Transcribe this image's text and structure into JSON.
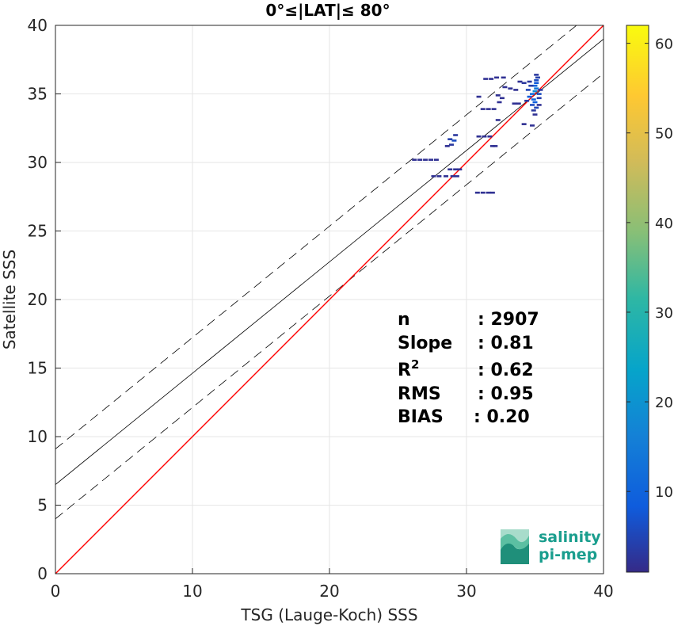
{
  "chart_data": {
    "type": "scatter",
    "title": "0°≤|LAT|≤ 80°",
    "xlabel": "TSG (Lauge-Koch) SSS",
    "ylabel": "Satellite SSS",
    "xlim": [
      0,
      40
    ],
    "ylim": [
      0,
      40
    ],
    "xticks": [
      "0",
      "10",
      "20",
      "30",
      "40"
    ],
    "yticks": [
      "0",
      "5",
      "10",
      "15",
      "20",
      "25",
      "30",
      "35",
      "40"
    ],
    "grid": true,
    "colorbar": {
      "min": 1,
      "max": 62,
      "ticks": [
        "10",
        "20",
        "30",
        "40",
        "50",
        "60"
      ],
      "colormap": "parula"
    },
    "lines": {
      "one_to_one": {
        "x": [
          0,
          40
        ],
        "y": [
          0,
          40
        ],
        "color": "#ff0000"
      },
      "fit": {
        "x": [
          0,
          40
        ],
        "y": [
          6.5,
          39.0
        ],
        "color": "#000000"
      },
      "fit_upper": {
        "x": [
          0,
          40
        ],
        "y": [
          9.1,
          41.6
        ],
        "dash": true
      },
      "fit_lower": {
        "x": [
          0,
          40
        ],
        "y": [
          4.0,
          36.5
        ],
        "dash": true
      }
    },
    "points": [
      {
        "x": 26.2,
        "y": 30.2,
        "c": 2
      },
      {
        "x": 26.6,
        "y": 30.2,
        "c": 2
      },
      {
        "x": 27.0,
        "y": 30.2,
        "c": 2
      },
      {
        "x": 27.4,
        "y": 30.2,
        "c": 2
      },
      {
        "x": 27.8,
        "y": 30.2,
        "c": 2
      },
      {
        "x": 27.6,
        "y": 29.0,
        "c": 2
      },
      {
        "x": 28.0,
        "y": 29.0,
        "c": 2
      },
      {
        "x": 28.5,
        "y": 29.0,
        "c": 2
      },
      {
        "x": 29.0,
        "y": 29.0,
        "c": 2
      },
      {
        "x": 29.3,
        "y": 29.0,
        "c": 2
      },
      {
        "x": 28.8,
        "y": 29.5,
        "c": 2
      },
      {
        "x": 29.2,
        "y": 29.5,
        "c": 2
      },
      {
        "x": 29.5,
        "y": 29.5,
        "c": 2
      },
      {
        "x": 28.8,
        "y": 31.7,
        "c": 4
      },
      {
        "x": 29.1,
        "y": 31.6,
        "c": 6
      },
      {
        "x": 28.9,
        "y": 31.3,
        "c": 3
      },
      {
        "x": 29.2,
        "y": 32.0,
        "c": 3
      },
      {
        "x": 28.6,
        "y": 31.2,
        "c": 2
      },
      {
        "x": 30.8,
        "y": 27.8,
        "c": 2
      },
      {
        "x": 31.2,
        "y": 27.8,
        "c": 2
      },
      {
        "x": 31.6,
        "y": 27.8,
        "c": 2
      },
      {
        "x": 31.9,
        "y": 27.8,
        "c": 2
      },
      {
        "x": 30.9,
        "y": 31.9,
        "c": 2
      },
      {
        "x": 31.3,
        "y": 31.9,
        "c": 2
      },
      {
        "x": 31.7,
        "y": 31.9,
        "c": 2
      },
      {
        "x": 31.9,
        "y": 31.2,
        "c": 2
      },
      {
        "x": 32.1,
        "y": 31.2,
        "c": 2
      },
      {
        "x": 31.2,
        "y": 33.9,
        "c": 2
      },
      {
        "x": 31.6,
        "y": 33.9,
        "c": 2
      },
      {
        "x": 32.0,
        "y": 33.9,
        "c": 2
      },
      {
        "x": 31.4,
        "y": 36.1,
        "c": 2
      },
      {
        "x": 31.8,
        "y": 36.1,
        "c": 2
      },
      {
        "x": 32.2,
        "y": 36.2,
        "c": 2
      },
      {
        "x": 32.7,
        "y": 36.2,
        "c": 2
      },
      {
        "x": 30.9,
        "y": 34.8,
        "c": 2
      },
      {
        "x": 32.3,
        "y": 34.9,
        "c": 2
      },
      {
        "x": 32.6,
        "y": 34.7,
        "c": 2
      },
      {
        "x": 32.4,
        "y": 34.4,
        "c": 2
      },
      {
        "x": 32.8,
        "y": 35.5,
        "c": 2
      },
      {
        "x": 33.2,
        "y": 35.4,
        "c": 2
      },
      {
        "x": 33.6,
        "y": 35.3,
        "c": 2
      },
      {
        "x": 33.5,
        "y": 34.3,
        "c": 2
      },
      {
        "x": 33.8,
        "y": 34.3,
        "c": 2
      },
      {
        "x": 33.9,
        "y": 35.9,
        "c": 2
      },
      {
        "x": 34.2,
        "y": 35.8,
        "c": 3
      },
      {
        "x": 32.3,
        "y": 33.1,
        "c": 2
      },
      {
        "x": 34.2,
        "y": 32.8,
        "c": 2
      },
      {
        "x": 34.6,
        "y": 34.8,
        "c": 8
      },
      {
        "x": 34.8,
        "y": 35.0,
        "c": 12
      },
      {
        "x": 35.0,
        "y": 35.2,
        "c": 18
      },
      {
        "x": 35.1,
        "y": 35.4,
        "c": 14
      },
      {
        "x": 35.0,
        "y": 35.6,
        "c": 10
      },
      {
        "x": 35.1,
        "y": 35.8,
        "c": 8
      },
      {
        "x": 35.1,
        "y": 36.0,
        "c": 6
      },
      {
        "x": 35.2,
        "y": 36.2,
        "c": 4
      },
      {
        "x": 35.1,
        "y": 36.4,
        "c": 3
      },
      {
        "x": 34.9,
        "y": 34.6,
        "c": 10
      },
      {
        "x": 35.0,
        "y": 34.4,
        "c": 9
      },
      {
        "x": 34.8,
        "y": 34.2,
        "c": 6
      },
      {
        "x": 35.1,
        "y": 34.0,
        "c": 5
      },
      {
        "x": 34.9,
        "y": 33.8,
        "c": 3
      },
      {
        "x": 35.0,
        "y": 33.5,
        "c": 2
      },
      {
        "x": 34.8,
        "y": 32.7,
        "c": 2
      },
      {
        "x": 34.5,
        "y": 35.3,
        "c": 5
      },
      {
        "x": 34.7,
        "y": 35.6,
        "c": 4
      },
      {
        "x": 35.3,
        "y": 35.0,
        "c": 6
      },
      {
        "x": 35.3,
        "y": 34.7,
        "c": 4
      },
      {
        "x": 34.4,
        "y": 34.5,
        "c": 3
      },
      {
        "x": 35.4,
        "y": 35.3,
        "c": 3
      },
      {
        "x": 34.6,
        "y": 35.9,
        "c": 3
      },
      {
        "x": 35.3,
        "y": 34.2,
        "c": 2
      }
    ],
    "stats": [
      {
        "label": "n",
        "value": ": 2907"
      },
      {
        "label": "Slope",
        "value": ": 0.81"
      },
      {
        "label": "R",
        "sup": "2",
        "value": ": 0.62"
      },
      {
        "label": "RMS",
        "value": ": 0.95"
      },
      {
        "label": "BIAS",
        "value": ": 0.20"
      }
    ]
  },
  "logo": {
    "line1": "salinity",
    "line2": "pi-mep"
  }
}
